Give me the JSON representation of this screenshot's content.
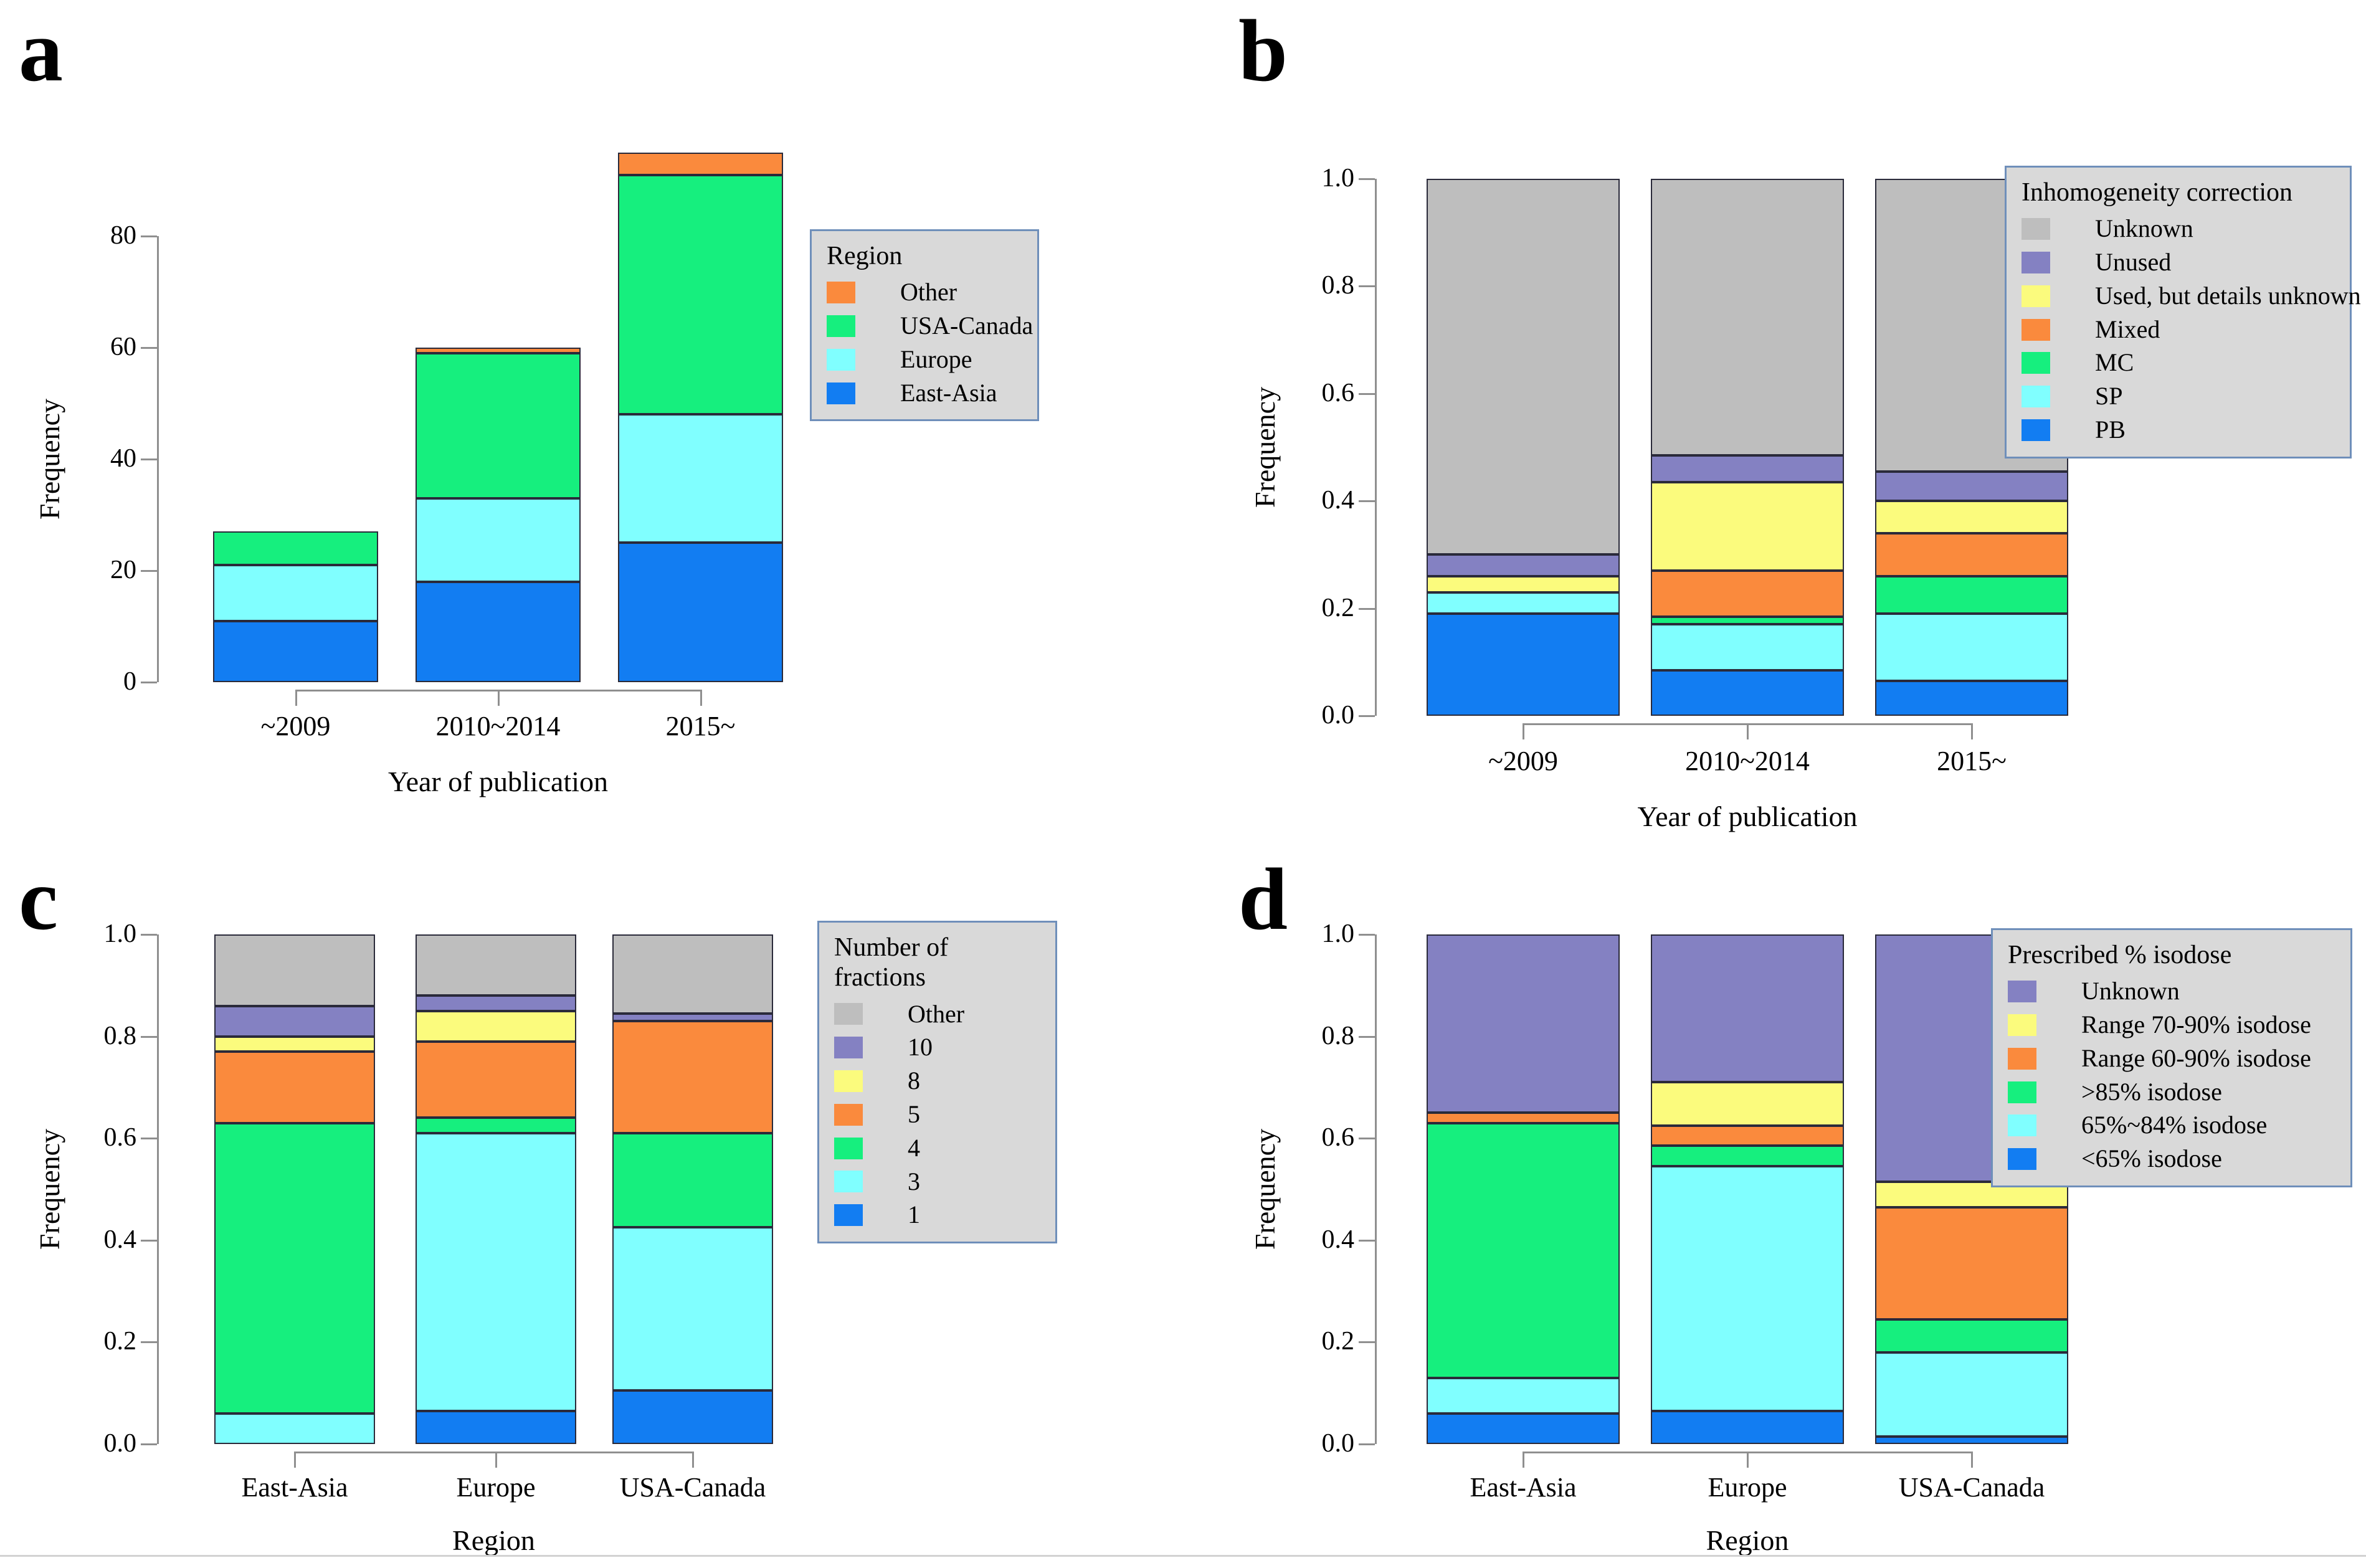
{
  "figure_title": "",
  "palette": {
    "blue": "#127DF2",
    "cyan": "#80FFFF",
    "green": "#16EF7E",
    "orange": "#FA8A3D",
    "yellow": "#FBFB7D",
    "purple": "#8481C2",
    "gray": "#BEBEBE",
    "legend_bg": "#d9d9d9",
    "legend_border": "#6f8fba",
    "axis_gray": "#8f8f8f"
  },
  "chart_data": [
    {
      "type": "bar",
      "stacked": true,
      "normalized": false,
      "letter": "a",
      "y_axis": {
        "label": "Frequency",
        "ticks": [
          0,
          20,
          40,
          60,
          80
        ],
        "tick_labels": [
          "0",
          "20",
          "40",
          "60",
          "80"
        ],
        "ylim": [
          0,
          97
        ]
      },
      "x_axis": {
        "label": "Year of publication",
        "categories": [
          "~2009",
          "2010~2014",
          "2015~"
        ]
      },
      "legend": {
        "title": "Region",
        "entries": [
          {
            "label": "Other",
            "color": "orange"
          },
          {
            "label": "USA-Canada",
            "color": "green"
          },
          {
            "label": "Europe",
            "color": "cyan"
          },
          {
            "label": "East-Asia",
            "color": "blue"
          }
        ]
      },
      "series": [
        {
          "name": "East-Asia",
          "color": "blue",
          "values": [
            11,
            18,
            25
          ]
        },
        {
          "name": "Europe",
          "color": "cyan",
          "values": [
            10,
            15,
            23
          ]
        },
        {
          "name": "USA-Canada",
          "color": "green",
          "values": [
            6,
            26,
            43
          ]
        },
        {
          "name": "Other",
          "color": "orange",
          "values": [
            0,
            1,
            4
          ]
        }
      ]
    },
    {
      "type": "bar",
      "stacked": true,
      "normalized": true,
      "letter": "b",
      "y_axis": {
        "label": "Frequency",
        "ticks": [
          0,
          0.2,
          0.4,
          0.6,
          0.8,
          1.0
        ],
        "tick_labels": [
          "0.0",
          "0.2",
          "0.4",
          "0.6",
          "0.8",
          "1.0"
        ],
        "ylim": [
          0,
          1
        ]
      },
      "x_axis": {
        "label": "Year of publication",
        "categories": [
          "~2009",
          "2010~2014",
          "2015~"
        ]
      },
      "legend": {
        "title": "Inhomogeneity correction",
        "entries": [
          {
            "label": "Unknown",
            "color": "gray"
          },
          {
            "label": "Unused",
            "color": "purple"
          },
          {
            "label": "Used, but details unknown",
            "color": "yellow"
          },
          {
            "label": "Mixed",
            "color": "orange"
          },
          {
            "label": "MC",
            "color": "green"
          },
          {
            "label": "SP",
            "color": "cyan"
          },
          {
            "label": "PB",
            "color": "blue"
          }
        ]
      },
      "series": [
        {
          "name": "PB",
          "color": "blue",
          "values": [
            0.19,
            0.085,
            0.065
          ]
        },
        {
          "name": "SP",
          "color": "cyan",
          "values": [
            0.04,
            0.085,
            0.125
          ]
        },
        {
          "name": "MC",
          "color": "green",
          "values": [
            0,
            0.015,
            0.07
          ]
        },
        {
          "name": "Mixed",
          "color": "orange",
          "values": [
            0,
            0.085,
            0.08
          ]
        },
        {
          "name": "Used, but details unknown",
          "color": "yellow",
          "values": [
            0.03,
            0.165,
            0.06
          ]
        },
        {
          "name": "Unused",
          "color": "purple",
          "values": [
            0.04,
            0.05,
            0.055
          ]
        },
        {
          "name": "Unknown",
          "color": "gray",
          "values": [
            0.7,
            0.515,
            0.545
          ]
        }
      ]
    },
    {
      "type": "bar",
      "stacked": true,
      "normalized": true,
      "letter": "c",
      "y_axis": {
        "label": "Frequency",
        "ticks": [
          0,
          0.2,
          0.4,
          0.6,
          0.8,
          1.0
        ],
        "tick_labels": [
          "0.0",
          "0.2",
          "0.4",
          "0.6",
          "0.8",
          "1.0"
        ],
        "ylim": [
          0,
          1
        ]
      },
      "x_axis": {
        "label": "Region",
        "categories": [
          "East-Asia",
          "Europe",
          "USA-Canada"
        ]
      },
      "legend": {
        "title": "Number of fractions",
        "entries": [
          {
            "label": "Other",
            "color": "gray"
          },
          {
            "label": "10",
            "color": "purple"
          },
          {
            "label": "8",
            "color": "yellow"
          },
          {
            "label": "5",
            "color": "orange"
          },
          {
            "label": "4",
            "color": "green"
          },
          {
            "label": "3",
            "color": "cyan"
          },
          {
            "label": "1",
            "color": "blue"
          }
        ]
      },
      "series": [
        {
          "name": "1",
          "color": "blue",
          "values": [
            0,
            0.065,
            0.105
          ]
        },
        {
          "name": "3",
          "color": "cyan",
          "values": [
            0.06,
            0.545,
            0.32
          ]
        },
        {
          "name": "4",
          "color": "green",
          "values": [
            0.57,
            0.03,
            0.185
          ]
        },
        {
          "name": "5",
          "color": "orange",
          "values": [
            0.14,
            0.15,
            0.22
          ]
        },
        {
          "name": "8",
          "color": "yellow",
          "values": [
            0.03,
            0.06,
            0
          ]
        },
        {
          "name": "10",
          "color": "purple",
          "values": [
            0.06,
            0.03,
            0.015
          ]
        },
        {
          "name": "Other",
          "color": "gray",
          "values": [
            0.14,
            0.12,
            0.155
          ]
        }
      ]
    },
    {
      "type": "bar",
      "stacked": true,
      "normalized": true,
      "letter": "d",
      "y_axis": {
        "label": "Frequency",
        "ticks": [
          0,
          0.2,
          0.4,
          0.6,
          0.8,
          1.0
        ],
        "tick_labels": [
          "0.0",
          "0.2",
          "0.4",
          "0.6",
          "0.8",
          "1.0"
        ],
        "ylim": [
          0,
          1
        ]
      },
      "x_axis": {
        "label": "Region",
        "categories": [
          "East-Asia",
          "Europe",
          "USA-Canada"
        ]
      },
      "legend": {
        "title": "Prescribed % isodose",
        "entries": [
          {
            "label": "Unknown",
            "color": "purple"
          },
          {
            "label": "Range 70-90% isodose",
            "color": "yellow"
          },
          {
            "label": "Range 60-90% isodose",
            "color": "orange"
          },
          {
            "label": ">85% isodose",
            "color": "green"
          },
          {
            "label": "65%~84% isodose",
            "color": "cyan"
          },
          {
            "label": "<65% isodose",
            "color": "blue"
          }
        ]
      },
      "series": [
        {
          "name": "<65% isodose",
          "color": "blue",
          "values": [
            0.06,
            0.065,
            0.015
          ]
        },
        {
          "name": "65%~84% isodose",
          "color": "cyan",
          "values": [
            0.07,
            0.48,
            0.165
          ]
        },
        {
          "name": ">85% isodose",
          "color": "green",
          "values": [
            0.5,
            0.04,
            0.065
          ]
        },
        {
          "name": "Range 60-90% isodose",
          "color": "orange",
          "values": [
            0.02,
            0.04,
            0.22
          ]
        },
        {
          "name": "Range 70-90% isodose",
          "color": "yellow",
          "values": [
            0,
            0.085,
            0.05
          ]
        },
        {
          "name": "Unknown",
          "color": "purple",
          "values": [
            0.35,
            0.29,
            0.485
          ]
        }
      ]
    }
  ]
}
